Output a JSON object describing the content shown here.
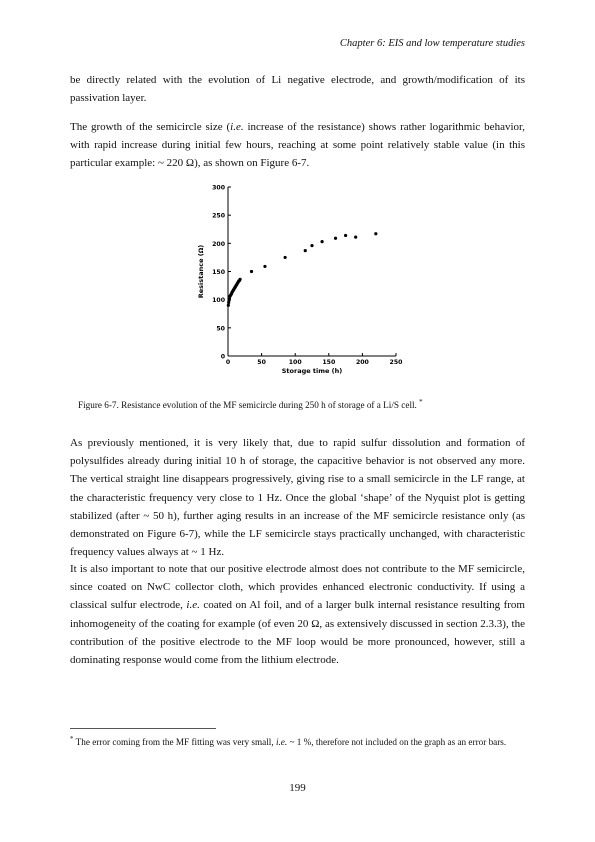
{
  "header": {
    "running_title": "Chapter 6: EIS and low temperature studies"
  },
  "paragraphs": {
    "p1": "be directly related with the evolution of Li negative electrode, and growth/modification of its passivation layer.",
    "p2_a": "The growth of the semicircle size (",
    "p2_ie": "i.e.",
    "p2_b": " increase of the resistance) shows rather logarithmic behavior, with rapid increase during initial few hours, reaching at some point relatively stable value (in this particular example: ~ 220 Ω), as shown on Figure 6-7.",
    "p3": "As previously mentioned, it is very likely that, due to rapid sulfur dissolution and formation of polysulfides already during initial 10 h of storage, the capacitive behavior is not observed any more. The vertical straight line disappears progressively, giving rise to a small semicircle in the LF range, at the characteristic frequency very close to 1 Hz. Once the global ‘shape’ of the Nyquist plot is getting stabilized (after ~ 50 h), further aging results in an increase of the MF semicircle resistance only (as demonstrated on Figure 6-7), while the LF semicircle stays practically unchanged, with characteristic frequency values always at ~ 1 Hz.",
    "p4_a": "It is also important to note that our positive electrode almost does not contribute to the MF semicircle, since coated on NwC collector cloth, which provides enhanced electronic conductivity. If using a classical sulfur electrode, ",
    "p4_ie": "i.e.",
    "p4_b": " coated on Al foil, and of a larger bulk internal resistance resulting from inhomogeneity of the coating for example (of even 20 Ω, as extensively discussed in section 2.3.3), the contribution of the positive electrode to the MF loop would be more pronounced, however, still a dominating response would come from the lithium electrode."
  },
  "figure": {
    "caption": "Figure 6-7. Resistance evolution of the MF semicircle during 250 h of storage of a Li/S cell.",
    "caption_mark": "*"
  },
  "footnote": {
    "mark": "*",
    "text_a": " The error coming from the MF fitting was very small, ",
    "ie": "i.e.",
    "text_b": " ~ 1 %, therefore not included on the graph as an error bars."
  },
  "page_number": "199",
  "chart_data": {
    "type": "scatter",
    "title": "",
    "xlabel": "Storage time (h)",
    "ylabel": "Resistance (Ω)",
    "xlim": [
      0,
      250
    ],
    "ylim": [
      0,
      300
    ],
    "xticks": [
      0,
      50,
      100,
      150,
      200,
      250
    ],
    "yticks": [
      0,
      50,
      100,
      150,
      200,
      250,
      300
    ],
    "grid": false,
    "series": [
      {
        "marker_color": "#000000",
        "x": [
          0.5,
          1,
          1.5,
          2,
          3,
          4,
          5,
          6,
          7,
          8,
          9,
          10,
          11,
          12,
          13,
          14,
          15,
          16,
          17,
          18,
          35,
          55,
          85,
          115,
          125,
          140,
          160,
          175,
          190,
          220
        ],
        "y": [
          90,
          95,
          99,
          102,
          106,
          108,
          110,
          113,
          115,
          117,
          119,
          121,
          123,
          125,
          127,
          129,
          131,
          133,
          134,
          136,
          150,
          159,
          175,
          187,
          196,
          203,
          209,
          214,
          211,
          217
        ]
      }
    ]
  }
}
